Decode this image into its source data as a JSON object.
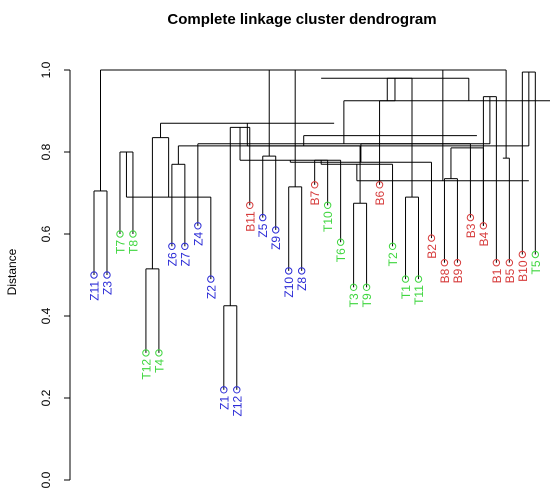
{
  "chart_data": {
    "type": "dendrogram",
    "title": "Complete linkage cluster dendrogram",
    "ylabel": "Distance",
    "ylim": [
      0,
      1
    ],
    "yticks": [
      "0.0",
      "0.2",
      "0.4",
      "0.6",
      "0.8",
      "1.0"
    ],
    "group_colors": {
      "Z": "#2b2bd6",
      "T": "#3fd63f",
      "B": "#d63b3b"
    },
    "leaves": [
      {
        "label": "Z11",
        "group": "Z",
        "height": 0.5
      },
      {
        "label": "Z3",
        "group": "Z",
        "height": 0.5
      },
      {
        "label": "T7",
        "group": "T",
        "height": 0.6
      },
      {
        "label": "T8",
        "group": "T",
        "height": 0.6
      },
      {
        "label": "T12",
        "group": "T",
        "height": 0.31
      },
      {
        "label": "T4",
        "group": "T",
        "height": 0.31
      },
      {
        "label": "Z6",
        "group": "Z",
        "height": 0.57
      },
      {
        "label": "Z7",
        "group": "Z",
        "height": 0.57
      },
      {
        "label": "Z4",
        "group": "Z",
        "height": 0.62
      },
      {
        "label": "Z2",
        "group": "Z",
        "height": 0.49
      },
      {
        "label": "Z1",
        "group": "Z",
        "height": 0.22
      },
      {
        "label": "Z12",
        "group": "Z",
        "height": 0.22
      },
      {
        "label": "B11",
        "group": "B",
        "height": 0.67
      },
      {
        "label": "Z5",
        "group": "Z",
        "height": 0.64
      },
      {
        "label": "Z9",
        "group": "Z",
        "height": 0.61
      },
      {
        "label": "Z10",
        "group": "Z",
        "height": 0.51
      },
      {
        "label": "Z8",
        "group": "Z",
        "height": 0.51
      },
      {
        "label": "B7",
        "group": "B",
        "height": 0.72
      },
      {
        "label": "T10",
        "group": "T",
        "height": 0.67
      },
      {
        "label": "T6",
        "group": "T",
        "height": 0.58
      },
      {
        "label": "T3",
        "group": "T",
        "height": 0.47
      },
      {
        "label": "T9",
        "group": "T",
        "height": 0.47
      },
      {
        "label": "B6",
        "group": "B",
        "height": 0.72
      },
      {
        "label": "T2",
        "group": "T",
        "height": 0.57
      },
      {
        "label": "T1",
        "group": "T",
        "height": 0.49
      },
      {
        "label": "T11",
        "group": "T",
        "height": 0.49
      },
      {
        "label": "B2",
        "group": "B",
        "height": 0.59
      },
      {
        "label": "B8",
        "group": "B",
        "height": 0.53
      },
      {
        "label": "B9",
        "group": "B",
        "height": 0.53
      },
      {
        "label": "B3",
        "group": "B",
        "height": 0.64
      },
      {
        "label": "B4",
        "group": "B",
        "height": 0.62
      },
      {
        "label": "B1",
        "group": "B",
        "height": 0.53
      },
      {
        "label": "B5",
        "group": "B",
        "height": 0.53
      },
      {
        "label": "B10",
        "group": "B",
        "height": 0.55
      },
      {
        "label": "T5",
        "group": "T",
        "height": 0.55
      }
    ],
    "merges": [
      [
        0,
        1,
        0.705
      ],
      [
        2,
        3,
        0.8
      ],
      [
        30,
        31,
        0.935
      ],
      [
        4,
        5,
        0.515
      ],
      [
        6,
        7,
        0.77
      ],
      [
        33,
        34,
        0.995
      ],
      [
        10,
        11,
        0.425
      ],
      [
        9,
        36,
        0.69
      ],
      [
        8,
        37,
        0.82
      ],
      [
        13,
        14,
        0.79
      ],
      [
        15,
        16,
        0.715
      ],
      [
        39,
        40,
        0.815
      ],
      [
        12,
        41,
        0.86
      ],
      [
        38,
        42,
        0.835
      ],
      [
        38.5,
        43,
        0.925
      ],
      [
        35,
        44,
        1.0
      ],
      [
        17,
        18,
        0.78
      ],
      [
        20,
        21,
        0.675
      ],
      [
        19,
        47,
        0.78
      ],
      [
        18.5,
        48,
        0.87
      ],
      [
        17.5,
        49,
        0.98
      ],
      [
        24,
        25,
        0.69
      ],
      [
        23,
        51,
        0.77
      ],
      [
        27,
        28,
        0.735
      ],
      [
        26,
        53,
        0.775
      ],
      [
        52,
        54,
        0.815
      ],
      [
        22,
        55,
        0.925
      ],
      [
        31.5,
        32,
        0.785
      ],
      [
        33.5,
        57,
        0.73
      ],
      [
        30,
        58,
        0.81
      ],
      [
        29,
        59,
        0.82
      ],
      [
        29.5,
        60,
        0.84
      ],
      [
        56,
        61,
        0.98
      ],
      [
        50,
        62,
        1.0
      ],
      [
        45,
        63,
        1.0
      ]
    ]
  }
}
